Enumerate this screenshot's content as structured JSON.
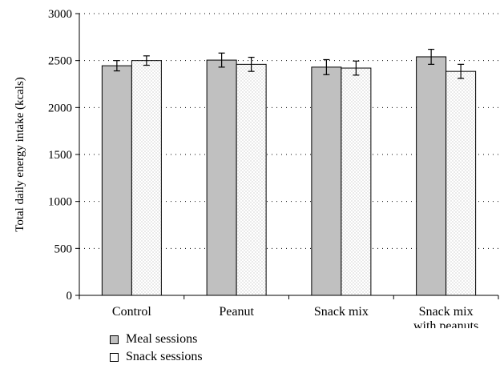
{
  "chart_data": {
    "type": "bar",
    "ylabel": "Total daily energy intake (kcals)",
    "xlabel": "",
    "ylim": [
      0,
      3000
    ],
    "yticks": [
      0,
      500,
      1000,
      1500,
      2000,
      2500,
      3000
    ],
    "grid": "horizontal dotted",
    "categories": [
      [
        "Control"
      ],
      [
        "Peanut"
      ],
      [
        "Snack mix"
      ],
      [
        "Snack mix",
        "with peanuts"
      ]
    ],
    "series": [
      {
        "name": "Meal sessions",
        "color": "#c0c0c0",
        "values": [
          2445,
          2505,
          2430,
          2540
        ],
        "error": [
          55,
          75,
          80,
          80
        ]
      },
      {
        "name": "Snack sessions",
        "color": "#ffffff",
        "pattern": "dotted",
        "values": [
          2500,
          2460,
          2420,
          2385
        ],
        "error": [
          50,
          75,
          75,
          75
        ]
      }
    ],
    "legend_position": "bottom-left"
  },
  "legend": {
    "items": [
      {
        "label": "Meal sessions"
      },
      {
        "label": "Snack sessions"
      }
    ]
  }
}
